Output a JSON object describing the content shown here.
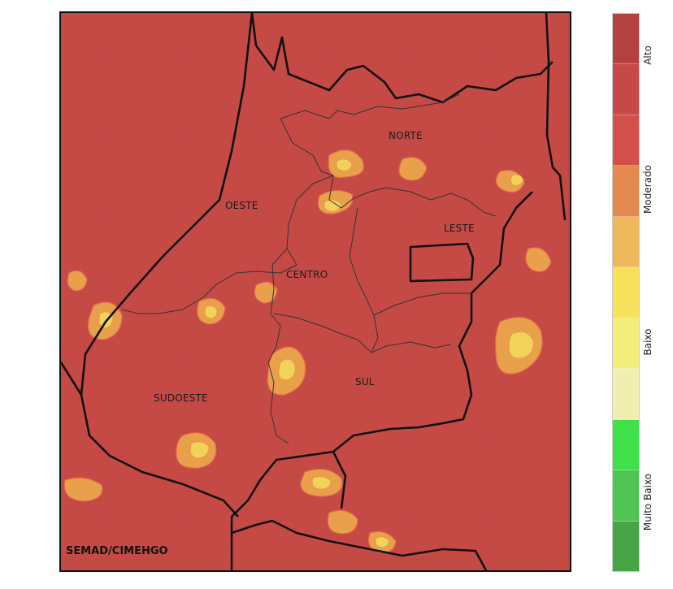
{
  "map": {
    "regions": [
      {
        "name": "NORTE",
        "label": "NORTE"
      },
      {
        "name": "OESTE",
        "label": "OESTE"
      },
      {
        "name": "LESTE",
        "label": "LESTE"
      },
      {
        "name": "CENTRO",
        "label": "CENTRO"
      },
      {
        "name": "SUDOESTE",
        "label": "SUDOESTE"
      },
      {
        "name": "SUL",
        "label": "SUL"
      }
    ],
    "credit": "SEMAD/CIMEHGO",
    "colors": {
      "background": "#c54a46",
      "moderate": "#e8a04a",
      "low": "#f2d35a",
      "border": "#111111"
    }
  },
  "legend": {
    "classes": [
      "Alto",
      "Moderado",
      "Baixo",
      "Muito Baixo"
    ],
    "colors": [
      "#b5413f",
      "#c54a46",
      "#d3504a",
      "#e38a4f",
      "#ecb85a",
      "#f7e05a",
      "#f3ee7a",
      "#f1efb0",
      "#3fe14a",
      "#50c453",
      "#47a548"
    ]
  }
}
